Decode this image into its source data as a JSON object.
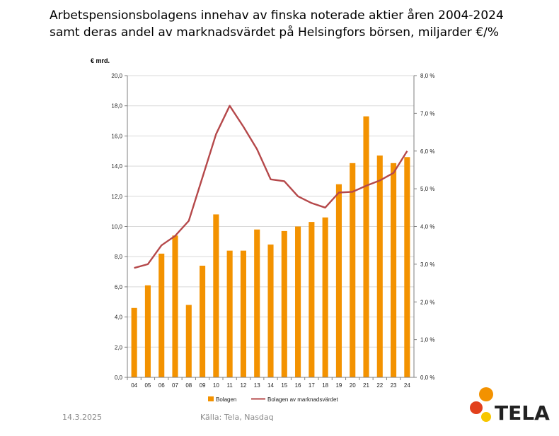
{
  "title": {
    "line1": "Arbetspensionsbolagens innehav av finska noterade aktier åren 2004-2024",
    "line2": "samt deras andel av marknadsvärdet på Helsingfors börsen, miljarder €/%"
  },
  "footer": {
    "date": "14.3.2025",
    "source": "Källa: Tela, Nasdaq"
  },
  "logo": {
    "text": "TELA"
  },
  "colors": {
    "bar": "#F39200",
    "line": "#B5484A",
    "logo_orange": "#F39200",
    "logo_red": "#E2401C",
    "logo_yellow": "#F7C600"
  },
  "chart_data": {
    "type": "bar",
    "unit_label": "€ mrd.",
    "categories": [
      "04",
      "05",
      "06",
      "07",
      "08",
      "09",
      "10",
      "11",
      "12",
      "13",
      "14",
      "15",
      "16",
      "17",
      "18",
      "19",
      "20",
      "21",
      "22",
      "23",
      "24"
    ],
    "y_ticks": [
      "0,0",
      "2,0",
      "4,0",
      "6,0",
      "8,0",
      "10,0",
      "12,0",
      "14,0",
      "16,0",
      "18,0",
      "20,0"
    ],
    "y2_ticks": [
      "0,0 %",
      "1,0 %",
      "2,0 %",
      "3,0 %",
      "4,0 %",
      "5,0 %",
      "6,0 %",
      "7,0 %",
      "8,0 %"
    ],
    "ylim": [
      0,
      20
    ],
    "y2lim": [
      0,
      8
    ],
    "legend_position": "bottom",
    "series": [
      {
        "name": "Bolagen",
        "type": "bar",
        "axis": "left",
        "values": [
          4.6,
          6.1,
          8.2,
          9.4,
          4.8,
          7.4,
          10.8,
          8.4,
          8.4,
          9.8,
          8.8,
          9.7,
          10.0,
          10.3,
          10.6,
          12.8,
          14.2,
          17.3,
          14.7,
          14.2,
          14.6
        ]
      },
      {
        "name": "Bolagen av marknadsvärdet",
        "type": "line",
        "axis": "right",
        "values": [
          2.9,
          3.0,
          3.5,
          3.75,
          4.15,
          5.3,
          6.45,
          7.2,
          6.65,
          6.05,
          5.25,
          5.2,
          4.8,
          4.62,
          4.5,
          4.9,
          4.92,
          5.08,
          5.22,
          5.42,
          6.0
        ]
      }
    ]
  }
}
